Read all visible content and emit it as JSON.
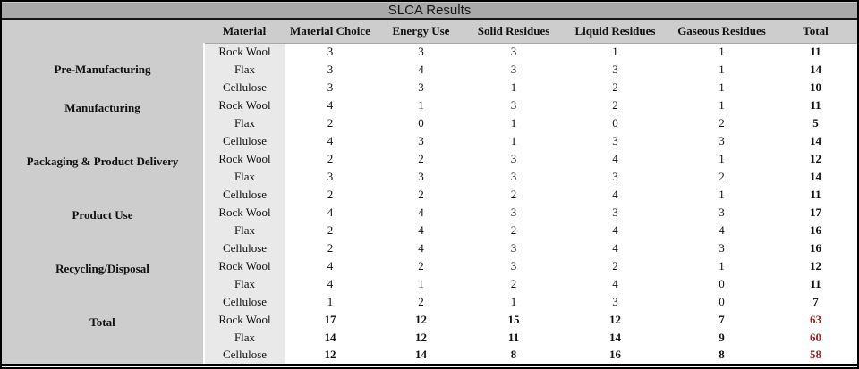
{
  "chart_data": {
    "type": "table",
    "title": "SLCA Results",
    "columns": [
      "",
      "Material",
      "Material Choice",
      "Energy Use",
      "Solid Residues",
      "Liquid Residues",
      "Gaseous Residues",
      "Total"
    ],
    "value_columns": [
      "Material Choice",
      "Energy Use",
      "Solid Residues",
      "Liquid Residues",
      "Gaseous Residues"
    ],
    "row_groups": [
      {
        "label": "Pre-Manufacturing",
        "grand_total": false,
        "rows": [
          {
            "material": "Rock Wool",
            "values": [
              3,
              3,
              3,
              1,
              1
            ],
            "total": 11
          },
          {
            "material": "Flax",
            "values": [
              3,
              4,
              3,
              3,
              1
            ],
            "total": 14
          },
          {
            "material": "Cellulose",
            "values": [
              3,
              3,
              1,
              2,
              1
            ],
            "total": 10
          }
        ]
      },
      {
        "label": "Manufacturing",
        "grand_total": false,
        "rows": [
          {
            "material": "Rock Wool",
            "values": [
              4,
              1,
              3,
              2,
              1
            ],
            "total": 11
          },
          {
            "material": "Flax",
            "values": [
              2,
              0,
              1,
              0,
              2
            ],
            "total": 5
          },
          {
            "material": "Cellulose",
            "values": [
              4,
              3,
              1,
              3,
              3
            ],
            "total": 14
          }
        ]
      },
      {
        "label": "Packaging & Product Delivery",
        "grand_total": false,
        "rows": [
          {
            "material": "Rock Wool",
            "values": [
              2,
              2,
              3,
              4,
              1
            ],
            "total": 12
          },
          {
            "material": "Flax",
            "values": [
              3,
              3,
              3,
              3,
              2
            ],
            "total": 14
          },
          {
            "material": "Cellulose",
            "values": [
              2,
              2,
              2,
              4,
              1
            ],
            "total": 11
          }
        ]
      },
      {
        "label": "Product Use",
        "grand_total": false,
        "rows": [
          {
            "material": "Rock Wool",
            "values": [
              4,
              4,
              3,
              3,
              3
            ],
            "total": 17
          },
          {
            "material": "Flax",
            "values": [
              2,
              4,
              2,
              4,
              4
            ],
            "total": 16
          },
          {
            "material": "Cellulose",
            "values": [
              2,
              4,
              3,
              4,
              3
            ],
            "total": 16
          }
        ]
      },
      {
        "label": "Recycling/Disposal",
        "grand_total": false,
        "rows": [
          {
            "material": "Rock Wool",
            "values": [
              4,
              2,
              3,
              2,
              1
            ],
            "total": 12
          },
          {
            "material": "Flax",
            "values": [
              4,
              1,
              2,
              4,
              0
            ],
            "total": 11
          },
          {
            "material": "Cellulose",
            "values": [
              1,
              2,
              1,
              3,
              0
            ],
            "total": 7
          }
        ]
      },
      {
        "label": "Total",
        "grand_total": true,
        "rows": [
          {
            "material": "Rock Wool",
            "values": [
              17,
              12,
              15,
              12,
              7
            ],
            "total": 63
          },
          {
            "material": "Flax",
            "values": [
              14,
              12,
              11,
              14,
              9
            ],
            "total": 60
          },
          {
            "material": "Cellulose",
            "values": [
              12,
              14,
              8,
              16,
              8
            ],
            "total": 58
          }
        ]
      }
    ],
    "layout": {
      "materials_order": [
        "Rock Wool",
        "Flax",
        "Cellulose"
      ]
    }
  },
  "colors": {
    "title_bar_bg": "#a9a9a9",
    "header_bg": "#cdcdcd",
    "phase_column_bg": "#cdcdcd",
    "material_column_bg": "#e9e9e9",
    "grand_total_text": "#9b2226",
    "outer_border": "#000000"
  }
}
